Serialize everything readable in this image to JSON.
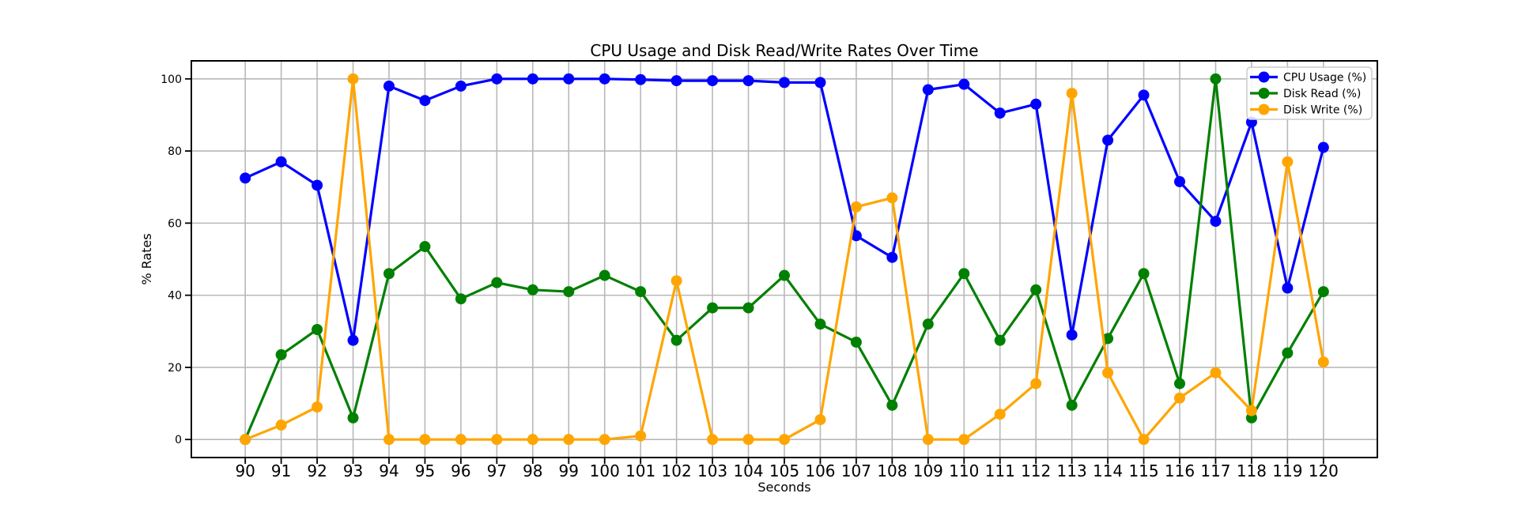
{
  "chart_data": {
    "type": "line",
    "title": "CPU Usage and Disk Read/Write Rates Over Time",
    "xlabel": "Seconds",
    "ylabel": "% Rates",
    "x": [
      90,
      91,
      92,
      93,
      94,
      95,
      96,
      97,
      98,
      99,
      100,
      101,
      102,
      103,
      104,
      105,
      106,
      107,
      108,
      109,
      110,
      111,
      112,
      113,
      114,
      115,
      116,
      117,
      118,
      119,
      120
    ],
    "series": [
      {
        "name": "CPU Usage (%)",
        "color": "#0000ff",
        "values": [
          72.5,
          77,
          70.5,
          27.5,
          98,
          94,
          98,
          100,
          100,
          100,
          100,
          99.8,
          99.5,
          99.5,
          99.5,
          99,
          99,
          56.5,
          50.5,
          97,
          98.5,
          90.5,
          93,
          29,
          83,
          95.5,
          71.5,
          60.5,
          88,
          42,
          81
        ]
      },
      {
        "name": "Disk Read (%)",
        "color": "#008000",
        "values": [
          0,
          23.5,
          30.5,
          6,
          46,
          53.5,
          39,
          43.5,
          41.5,
          41,
          45.5,
          41,
          27.5,
          36.5,
          36.5,
          45.5,
          32,
          27,
          9.5,
          32,
          46,
          27.5,
          41.5,
          9.5,
          28,
          46,
          15.5,
          100,
          6,
          24,
          41
        ]
      },
      {
        "name": "Disk Write (%)",
        "color": "#ffa500",
        "values": [
          0,
          4,
          9,
          100,
          0,
          0,
          0,
          0,
          0,
          0,
          0,
          1,
          44,
          0,
          0,
          0,
          5.5,
          64.5,
          67,
          0,
          0,
          7,
          15.5,
          96,
          18.5,
          0,
          11.5,
          18.5,
          8,
          77,
          21.5
        ]
      }
    ],
    "xticks": [
      90,
      91,
      92,
      93,
      94,
      95,
      96,
      97,
      98,
      99,
      100,
      101,
      102,
      103,
      104,
      105,
      106,
      107,
      108,
      109,
      110,
      111,
      112,
      113,
      114,
      115,
      116,
      117,
      118,
      119,
      120
    ],
    "yticks": [
      0,
      20,
      40,
      60,
      80,
      100
    ],
    "xlim": [
      88.5,
      121.5
    ],
    "ylim": [
      -5,
      105
    ],
    "grid": true,
    "legend_position": "upper right",
    "grid_color": "#b8b8b8",
    "axis_color": "#000000",
    "background_color": "#ffffff"
  }
}
